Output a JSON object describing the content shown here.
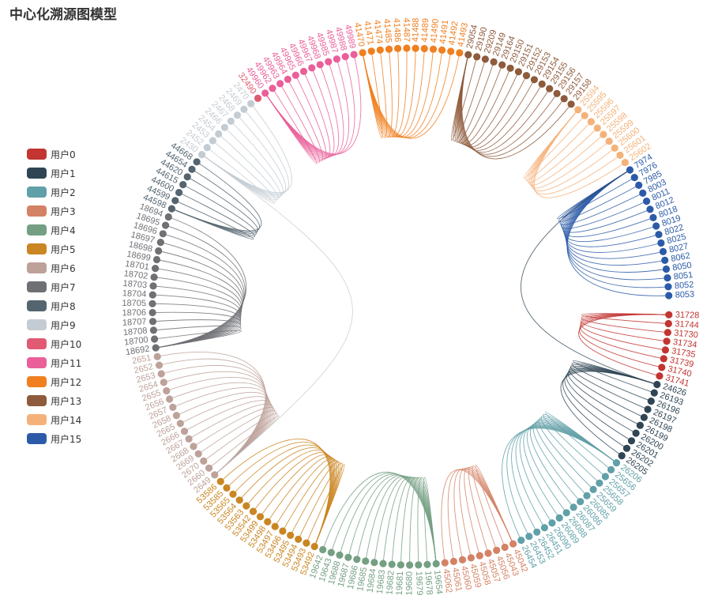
{
  "title": "中心化溯源图模型",
  "chart_data": {
    "type": "chord",
    "title": "中心化溯源图模型",
    "legend_position": "left",
    "groups": [
      {
        "name": "用户0",
        "color": "#c23531",
        "nodes": [
          "31728",
          "31744",
          "31730",
          "31734",
          "31735",
          "31739",
          "31740",
          "31741"
        ]
      },
      {
        "name": "用户1",
        "color": "#2f4554",
        "nodes": [
          "24626",
          "26193",
          "26196",
          "26197",
          "26198",
          "26199",
          "26200",
          "26201",
          "26202",
          "26205"
        ]
      },
      {
        "name": "用户2",
        "color": "#61a0a8",
        "nodes": [
          "26206",
          "25656",
          "25657",
          "25658",
          "25659",
          "26085",
          "26086",
          "26087",
          "26088",
          "26089",
          "26090",
          "26451",
          "26452",
          "26453",
          "26454"
        ]
      },
      {
        "name": "用户3",
        "color": "#d48265",
        "nodes": [
          "45042",
          "45043",
          "45056",
          "45057",
          "45058",
          "45059",
          "45060",
          "45061",
          "45062"
        ]
      },
      {
        "name": "用户4",
        "color": "#749f83",
        "nodes": [
          "19654",
          "19678",
          "19679",
          "19680",
          "19681",
          "19682",
          "19683",
          "19684",
          "19685",
          "19686",
          "19687",
          "19688",
          "19643",
          "19642"
        ]
      },
      {
        "name": "用户5",
        "color": "#ca8622",
        "nodes": [
          "53492",
          "53493",
          "53494",
          "53495",
          "53496",
          "53497",
          "53498",
          "53499",
          "53542",
          "53563",
          "53564",
          "53565",
          "53585",
          "53586"
        ]
      },
      {
        "name": "用户6",
        "color": "#bda29a",
        "nodes": [
          "2649",
          "2660",
          "2670",
          "2669",
          "2668",
          "2667",
          "2666",
          "2665",
          "2658",
          "2657",
          "2656",
          "2655",
          "2654",
          "2653",
          "2652",
          "2651"
        ]
      },
      {
        "name": "用户7",
        "color": "#6e7074",
        "nodes": [
          "18692",
          "18700",
          "18708",
          "18707",
          "18706",
          "18705",
          "18704",
          "18703",
          "18702",
          "18701",
          "18699",
          "18698",
          "18697",
          "18696",
          "18695",
          "18694"
        ]
      },
      {
        "name": "用户8",
        "color": "#546570",
        "nodes": [
          "44598",
          "44599",
          "44600",
          "44615",
          "44620",
          "44654",
          "44668"
        ]
      },
      {
        "name": "用户9",
        "color": "#c4ccd3",
        "nodes": [
          "2430",
          "2452",
          "2453",
          "2454",
          "2466",
          "2467",
          "2468",
          "2469",
          "2470"
        ]
      },
      {
        "name": "用户10",
        "color": "#e05a72",
        "nodes": [
          "32490"
        ]
      },
      {
        "name": "用户11",
        "color": "#ea5f9a",
        "nodes": [
          "49960",
          "49962",
          "49963",
          "49964",
          "49965",
          "49966",
          "49967",
          "49968",
          "49985",
          "49987",
          "49988",
          "49989"
        ]
      },
      {
        "name": "用户12",
        "color": "#f07f1f",
        "nodes": [
          "41470",
          "41471",
          "41474",
          "41485",
          "41486",
          "41487",
          "41488",
          "41489",
          "41490",
          "41491",
          "41492",
          "41493"
        ]
      },
      {
        "name": "用户13",
        "color": "#8e5b3c",
        "nodes": [
          "29054",
          "29190",
          "29209",
          "29149",
          "29164",
          "29150",
          "29151",
          "29152",
          "29153",
          "29154",
          "29155",
          "29156",
          "29157",
          "29158"
        ]
      },
      {
        "name": "用户14",
        "color": "#f4b27a",
        "nodes": [
          "25594",
          "25595",
          "25596",
          "25597",
          "25598",
          "25599",
          "25600",
          "25601",
          "25602"
        ]
      },
      {
        "name": "用户15",
        "color": "#2b5ba8",
        "nodes": [
          "7974",
          "7976",
          "7985",
          "8003",
          "8011",
          "8012",
          "8018",
          "8019",
          "8022",
          "8025",
          "8027",
          "8062",
          "8050",
          "8051",
          "8052",
          "8053"
        ]
      }
    ]
  }
}
